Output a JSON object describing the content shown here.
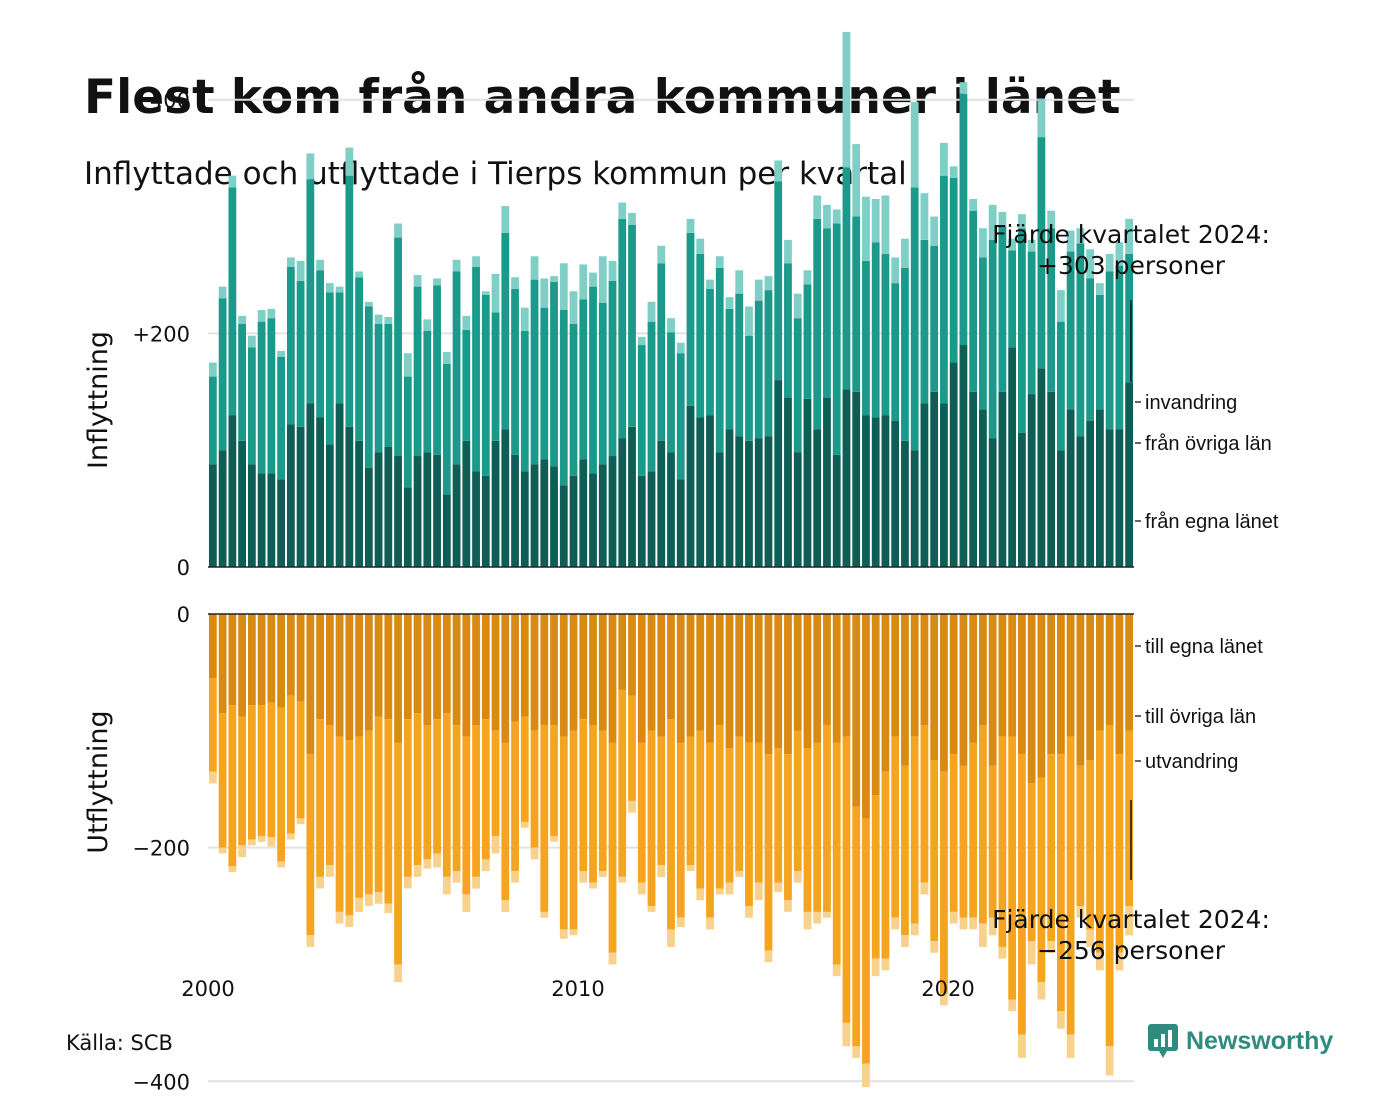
{
  "title": "Flest kom från andra kommuner i länet",
  "subtitle": "Inflyttade och utflyttade i Tierps kommun per kvartal",
  "source": "Källa: SCB",
  "brand": "Newsworthy",
  "annotation_in": {
    "line1": "Fjärde kvartalet 2024:",
    "line2": "+303 personer"
  },
  "annotation_out": {
    "line1": "Fjärde kvartalet 2024:",
    "line2": "−256 personer"
  },
  "colors": {
    "in_own": "#0e5e56",
    "in_other": "#1b9a8b",
    "in_immigration": "#7fcfc6",
    "out_own": "#d88a12",
    "out_other": "#f4a41e",
    "out_emigration": "#f8d28c"
  },
  "chart_data": {
    "type": "bar",
    "stacked": true,
    "x_label_first": "2000",
    "year_labels": [
      "2000",
      "2010",
      "2020"
    ],
    "panels": [
      {
        "ylabel": "Inflyttning",
        "ylim": [
          0,
          460
        ],
        "y_ticks": [
          0,
          200,
          400
        ],
        "y_tick_labels": [
          "0",
          "+200",
          "+400"
        ],
        "grid": true,
        "series": [
          {
            "name": "från egna länet",
            "values": [
              88,
              100,
              130,
              108,
              88,
              80,
              80,
              75,
              122,
              120,
              140,
              128,
              105,
              140,
              120,
              108,
              85,
              98,
              103,
              95,
              68,
              95,
              98,
              96,
              62,
              88,
              108,
              82,
              78,
              108,
              118,
              96,
              82,
              88,
              92,
              86,
              70,
              78,
              92,
              80,
              88,
              95,
              110,
              120,
              78,
              82,
              108,
              98,
              75,
              138,
              128,
              130,
              98,
              118,
              112,
              108,
              110,
              112,
              160,
              145,
              98,
              144,
              118,
              145,
              96,
              152,
              150,
              130,
              128,
              130,
              125,
              108,
              100,
              140,
              150,
              140,
              175,
              190,
              150,
              135,
              110,
              150,
              188,
              115,
              148,
              170,
              150,
              100,
              135,
              112,
              125,
              135,
              118,
              118,
              158
            ]
          },
          {
            "name": "från övriga län",
            "values": [
              75,
              130,
              195,
              100,
              100,
              130,
              133,
              105,
              135,
              125,
              192,
              126,
              130,
              95,
              215,
              140,
              138,
              110,
              105,
              187,
              95,
              145,
              104,
              145,
              112,
              165,
              95,
              175,
              155,
              110,
              168,
              142,
              120,
              158,
              130,
              158,
              150,
              130,
              137,
              160,
              138,
              150,
              188,
              173,
              112,
              128,
              152,
              103,
              108,
              148,
              140,
              108,
              158,
              103,
              122,
              90,
              118,
              125,
              170,
              115,
              115,
              98,
              180,
              145,
              198,
              190,
              150,
              132,
              150,
              138,
              118,
              148,
              225,
              140,
              125,
              195,
              158,
              215,
              155,
              130,
              170,
              142,
              83,
              175,
              122,
              198,
              140,
              110,
              135,
              165,
              122,
              98,
              135,
              140,
              110
            ]
          },
          {
            "name": "invandring",
            "values": [
              12,
              10,
              10,
              7,
              10,
              10,
              8,
              5,
              8,
              17,
              22,
              9,
              8,
              5,
              24,
              5,
              4,
              8,
              6,
              12,
              20,
              10,
              10,
              6,
              10,
              10,
              12,
              9,
              3,
              33,
              23,
              10,
              20,
              20,
              25,
              5,
              40,
              28,
              30,
              12,
              40,
              17,
              14,
              10,
              7,
              17,
              15,
              12,
              9,
              12,
              13,
              8,
              10,
              10,
              20,
              25,
              18,
              12,
              18,
              20,
              21,
              12,
              20,
              20,
              12,
              116,
              62,
              55,
              37,
              50,
              22,
              25,
              73,
              40,
              25,
              28,
              10,
              10,
              10,
              25,
              30,
              12,
              10,
              12,
              10,
              33,
              15,
              27,
              18,
              13,
              25,
              10,
              15,
              20,
              30
            ]
          }
        ]
      },
      {
        "ylabel": "Utflyttning",
        "ylim": [
          -400,
          0
        ],
        "y_ticks": [
          0,
          -200,
          -400
        ],
        "y_tick_labels": [
          "0",
          "−200",
          "−400"
        ],
        "grid": true,
        "series": [
          {
            "name": "till egna länet",
            "values": [
              -55,
              -85,
              -78,
              -88,
              -78,
              -78,
              -76,
              -80,
              -70,
              -75,
              -120,
              -90,
              -95,
              -105,
              -108,
              -105,
              -100,
              -88,
              -90,
              -110,
              -90,
              -85,
              -95,
              -90,
              -85,
              -95,
              -105,
              -95,
              -90,
              -100,
              -110,
              -92,
              -88,
              -100,
              -95,
              -95,
              -105,
              -100,
              -90,
              -95,
              -100,
              -110,
              -65,
              -70,
              -110,
              -100,
              -105,
              -90,
              -110,
              -105,
              -100,
              -110,
              -95,
              -115,
              -105,
              -110,
              -110,
              -120,
              -115,
              -120,
              -100,
              -115,
              -110,
              -95,
              -110,
              -105,
              -165,
              -175,
              -155,
              -135,
              -105,
              -130,
              -105,
              -95,
              -125,
              -135,
              -120,
              -130,
              -110,
              -95,
              -130,
              -105,
              -105,
              -120,
              -145,
              -140,
              -120,
              -120,
              -105,
              -130,
              -125,
              -100,
              -95,
              -120,
              -100
            ]
          },
          {
            "name": "till övriga län",
            "values": [
              -80,
              -115,
              -138,
              -110,
              -115,
              -112,
              -115,
              -132,
              -118,
              -100,
              -155,
              -135,
              -120,
              -150,
              -150,
              -138,
              -140,
              -150,
              -158,
              -190,
              -135,
              -130,
              -115,
              -115,
              -140,
              -125,
              -135,
              -130,
              -120,
              -90,
              -135,
              -128,
              -90,
              -100,
              -160,
              -95,
              -165,
              -170,
              -130,
              -135,
              -120,
              -180,
              -160,
              -90,
              -120,
              -150,
              -110,
              -180,
              -150,
              -110,
              -135,
              -150,
              -140,
              -115,
              -115,
              -140,
              -120,
              -168,
              -115,
              -125,
              -120,
              -140,
              -145,
              -160,
              -190,
              -245,
              -205,
              -210,
              -140,
              -160,
              -155,
              -145,
              -160,
              -135,
              -155,
              -190,
              -135,
              -130,
              -150,
              -170,
              -130,
              -180,
              -225,
              -240,
              -135,
              -175,
              -160,
              -220,
              -255,
              -120,
              -145,
              -190,
              -275,
              -170,
              -150
            ]
          },
          {
            "name": "utvandring",
            "values": [
              -10,
              -5,
              -5,
              -10,
              -5,
              -5,
              -8,
              -5,
              -5,
              -5,
              -10,
              -10,
              -10,
              -10,
              -10,
              -12,
              -10,
              -10,
              -8,
              -15,
              -10,
              -10,
              -8,
              -12,
              -15,
              -10,
              -15,
              -10,
              -10,
              -15,
              -10,
              -10,
              -5,
              -10,
              -5,
              -5,
              -8,
              -5,
              -10,
              -5,
              -5,
              -10,
              -5,
              -10,
              -10,
              -5,
              -10,
              -15,
              -8,
              -5,
              -10,
              -10,
              -5,
              -10,
              -5,
              -10,
              -15,
              -10,
              -8,
              -10,
              -10,
              -15,
              -10,
              -5,
              -10,
              -20,
              -10,
              -20,
              -15,
              -10,
              -10,
              -10,
              -10,
              -10,
              -10,
              -10,
              -10,
              -10,
              -10,
              -20,
              -15,
              -10,
              -10,
              -20,
              -20,
              -15,
              -10,
              -15,
              -20,
              -10,
              -15,
              -15,
              -25,
              -15,
              -25
            ]
          }
        ]
      }
    ]
  }
}
